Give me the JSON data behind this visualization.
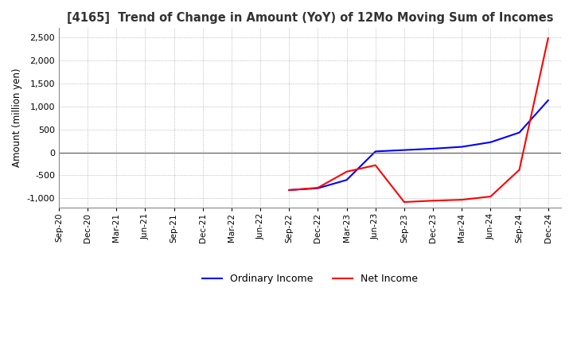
{
  "title": "[4165]  Trend of Change in Amount (YoY) of 12Mo Moving Sum of Incomes",
  "ylabel": "Amount (million yen)",
  "ylim": [
    -1200,
    2700
  ],
  "yticks": [
    -1000,
    -500,
    0,
    500,
    1000,
    1500,
    2000,
    2500
  ],
  "background_color": "#ffffff",
  "plot_bg_color": "#ffffff",
  "grid_color": "#aaaaaa",
  "ordinary_income_color": "#0000ff",
  "net_income_color": "#ff0000",
  "x_labels": [
    "Sep-20",
    "Dec-20",
    "Mar-21",
    "Jun-21",
    "Sep-21",
    "Dec-21",
    "Mar-22",
    "Jun-22",
    "Sep-22",
    "Dec-22",
    "Mar-23",
    "Jun-23",
    "Sep-23",
    "Dec-23",
    "Mar-24",
    "Jun-24",
    "Sep-24",
    "Dec-24"
  ],
  "ordinary_income": [
    null,
    null,
    null,
    null,
    null,
    null,
    null,
    null,
    -820,
    -780,
    -600,
    20,
    50,
    80,
    120,
    220,
    430,
    1130
  ],
  "net_income": [
    null,
    null,
    null,
    null,
    null,
    null,
    null,
    null,
    -820,
    -770,
    -420,
    -280,
    -1080,
    -1050,
    -1030,
    -960,
    -380,
    2480
  ]
}
